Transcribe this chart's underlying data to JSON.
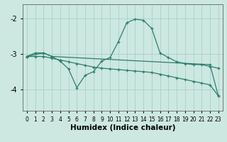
{
  "xlabel": "Humidex (Indice chaleur)",
  "bg_color": "#cce8e0",
  "line_color": "#2e7d6e",
  "grid_color": "#aacfc8",
  "xlim": [
    -0.5,
    23.5
  ],
  "ylim": [
    -4.6,
    -1.6
  ],
  "yticks": [
    -4,
    -3,
    -2
  ],
  "xticks": [
    0,
    1,
    2,
    3,
    4,
    5,
    6,
    7,
    8,
    9,
    10,
    11,
    12,
    13,
    14,
    15,
    16,
    17,
    18,
    19,
    20,
    21,
    22,
    23
  ],
  "curve1_x": [
    0,
    1,
    2,
    3,
    4,
    5,
    6,
    7,
    8,
    9,
    10,
    11,
    12,
    13,
    14,
    15,
    16,
    17,
    18,
    19,
    20,
    21,
    22,
    23
  ],
  "curve1_y": [
    -3.07,
    -2.97,
    -2.97,
    -3.07,
    -3.2,
    -3.42,
    -3.95,
    -3.6,
    -3.5,
    -3.2,
    -3.1,
    -2.65,
    -2.12,
    -2.02,
    -2.05,
    -2.28,
    -2.97,
    -3.1,
    -3.22,
    -3.27,
    -3.3,
    -3.3,
    -3.35,
    -3.4
  ],
  "curve2_x": [
    0,
    1,
    2,
    3,
    4,
    5,
    6,
    7,
    8,
    9,
    10,
    11,
    12,
    13,
    14,
    15,
    16,
    17,
    18,
    19,
    20,
    21,
    22,
    23
  ],
  "curve2_y": [
    -3.07,
    -3.07,
    -3.07,
    -3.12,
    -3.17,
    -3.22,
    -3.27,
    -3.32,
    -3.37,
    -3.4,
    -3.42,
    -3.44,
    -3.46,
    -3.48,
    -3.5,
    -3.52,
    -3.57,
    -3.62,
    -3.67,
    -3.72,
    -3.77,
    -3.82,
    -3.87,
    -4.18
  ],
  "curve3_x": [
    0,
    2,
    3,
    22,
    23
  ],
  "curve3_y": [
    -3.07,
    -2.97,
    -3.07,
    -3.3,
    -4.18
  ]
}
